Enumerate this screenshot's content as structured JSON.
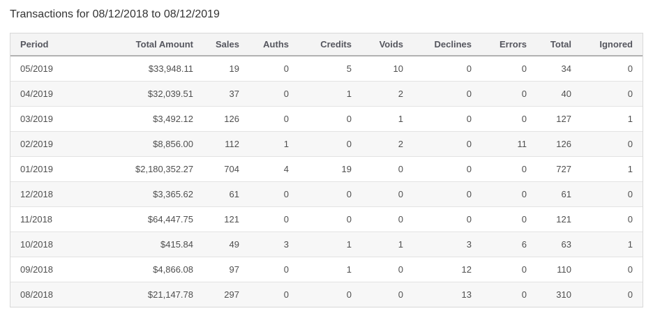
{
  "page": {
    "title": "Transactions for 08/12/2018 to 08/12/2019"
  },
  "colors": {
    "title_text": "#333333",
    "header_bg": "#f4f4f4",
    "header_text": "#55565e",
    "cell_text": "#4f4f4f",
    "stripe_bg": "#f7f7f7",
    "outer_border": "#d8d8d8",
    "header_border": "#b2b2b2",
    "row_border": "#e3e3e3"
  },
  "table": {
    "columns": [
      {
        "key": "period",
        "label": "Period",
        "align": "left"
      },
      {
        "key": "total_amount",
        "label": "Total Amount",
        "align": "right"
      },
      {
        "key": "sales",
        "label": "Sales",
        "align": "right"
      },
      {
        "key": "auths",
        "label": "Auths",
        "align": "right"
      },
      {
        "key": "credits",
        "label": "Credits",
        "align": "right"
      },
      {
        "key": "voids",
        "label": "Voids",
        "align": "right"
      },
      {
        "key": "declines",
        "label": "Declines",
        "align": "right"
      },
      {
        "key": "errors",
        "label": "Errors",
        "align": "right"
      },
      {
        "key": "total",
        "label": "Total",
        "align": "right"
      },
      {
        "key": "ignored",
        "label": "Ignored",
        "align": "right"
      }
    ],
    "rows": [
      {
        "period": "05/2019",
        "total_amount": "$33,948.11",
        "sales": "19",
        "auths": "0",
        "credits": "5",
        "voids": "10",
        "declines": "0",
        "errors": "0",
        "total": "34",
        "ignored": "0"
      },
      {
        "period": "04/2019",
        "total_amount": "$32,039.51",
        "sales": "37",
        "auths": "0",
        "credits": "1",
        "voids": "2",
        "declines": "0",
        "errors": "0",
        "total": "40",
        "ignored": "0"
      },
      {
        "period": "03/2019",
        "total_amount": "$3,492.12",
        "sales": "126",
        "auths": "0",
        "credits": "0",
        "voids": "1",
        "declines": "0",
        "errors": "0",
        "total": "127",
        "ignored": "1"
      },
      {
        "period": "02/2019",
        "total_amount": "$8,856.00",
        "sales": "112",
        "auths": "1",
        "credits": "0",
        "voids": "2",
        "declines": "0",
        "errors": "11",
        "total": "126",
        "ignored": "0"
      },
      {
        "period": "01/2019",
        "total_amount": "$2,180,352.27",
        "sales": "704",
        "auths": "4",
        "credits": "19",
        "voids": "0",
        "declines": "0",
        "errors": "0",
        "total": "727",
        "ignored": "1"
      },
      {
        "period": "12/2018",
        "total_amount": "$3,365.62",
        "sales": "61",
        "auths": "0",
        "credits": "0",
        "voids": "0",
        "declines": "0",
        "errors": "0",
        "total": "61",
        "ignored": "0"
      },
      {
        "period": "11/2018",
        "total_amount": "$64,447.75",
        "sales": "121",
        "auths": "0",
        "credits": "0",
        "voids": "0",
        "declines": "0",
        "errors": "0",
        "total": "121",
        "ignored": "0"
      },
      {
        "period": "10/2018",
        "total_amount": "$415.84",
        "sales": "49",
        "auths": "3",
        "credits": "1",
        "voids": "1",
        "declines": "3",
        "errors": "6",
        "total": "63",
        "ignored": "1"
      },
      {
        "period": "09/2018",
        "total_amount": "$4,866.08",
        "sales": "97",
        "auths": "0",
        "credits": "1",
        "voids": "0",
        "declines": "12",
        "errors": "0",
        "total": "110",
        "ignored": "0"
      },
      {
        "period": "08/2018",
        "total_amount": "$21,147.78",
        "sales": "297",
        "auths": "0",
        "credits": "0",
        "voids": "0",
        "declines": "13",
        "errors": "0",
        "total": "310",
        "ignored": "0"
      }
    ]
  }
}
